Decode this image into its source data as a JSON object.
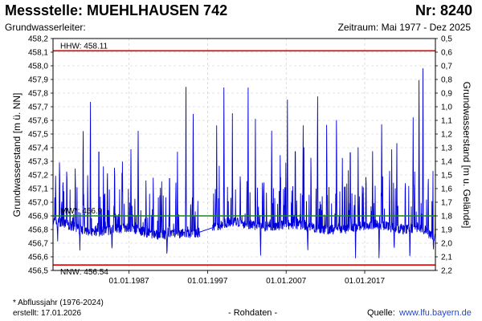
{
  "header": {
    "title": "Messstelle: MUEHLHAUSEN 742",
    "number": "Nr: 8240",
    "aquifer_label": "Grundwasserleiter:",
    "period": "Zeitraum: Mai 1977 - Dez 2025"
  },
  "footer": {
    "footnote": "* Abflussjahr (1976-2024)",
    "created": "erstellt:  17.01.2026",
    "raw_data": "- Rohdaten -",
    "source_label": "Quelle:",
    "source_url": "www.lfu.bayern.de"
  },
  "chart_data": {
    "type": "line",
    "ylabel": "Grundwasserstand [m ü. NN]",
    "y2label": "Grundwasserstand [m u. Gelände]",
    "ylim": [
      456.5,
      458.2
    ],
    "y2lim": [
      2.2,
      0.5
    ],
    "yticks": [
      "458,2",
      "458,1",
      "458,0",
      "457,9",
      "457,8",
      "457,7",
      "457,6",
      "457,5",
      "457,4",
      "457,3",
      "457,2",
      "457,1",
      "457,0",
      "456,9",
      "456,8",
      "456,7",
      "456,6",
      "456,5"
    ],
    "y2ticks": [
      "0,5",
      "0,6",
      "0,7",
      "0,8",
      "0,9",
      "1,0",
      "1,1",
      "1,2",
      "1,3",
      "1,4",
      "1,5",
      "1,6",
      "1,7",
      "1,8",
      "1,9",
      "2,0",
      "2,1",
      "2,2"
    ],
    "xlim": [
      "1977-05-01",
      "2025-12-31"
    ],
    "xticks": [
      {
        "date": "1987-01-01",
        "label": "01.01.1987"
      },
      {
        "date": "1997-01-01",
        "label": "01.01.1997"
      },
      {
        "date": "2007-01-01",
        "label": "01.01.2007"
      },
      {
        "date": "2017-01-01",
        "label": "01.01.2017"
      }
    ],
    "grid": true,
    "reference_lines": [
      {
        "label": "HHW: 458.11",
        "value": 458.11,
        "color": "#e00000"
      },
      {
        "label": "MW*: 456.9",
        "value": 456.9,
        "color": "#1a8a1a"
      },
      {
        "label": "NNW: 456.54",
        "value": 456.54,
        "color": "#e00000"
      }
    ],
    "series": [
      {
        "color": "#0000dd",
        "gap": [
          "1996-01-01",
          "1997-08-01"
        ],
        "baseline": [
          [
            "1977-05-01",
            456.86
          ],
          [
            "1979-01-01",
            456.84
          ],
          [
            "1981-01-01",
            456.8
          ],
          [
            "1983-01-01",
            456.78
          ],
          [
            "1985-01-01",
            456.8
          ],
          [
            "1987-01-01",
            456.82
          ],
          [
            "1989-01-01",
            456.78
          ],
          [
            "1991-01-01",
            456.76
          ],
          [
            "1993-01-01",
            456.77
          ],
          [
            "1995-06-01",
            456.77
          ],
          [
            "1998-01-01",
            456.82
          ],
          [
            "2000-01-01",
            456.86
          ],
          [
            "2002-01-01",
            456.84
          ],
          [
            "2004-01-01",
            456.82
          ],
          [
            "2006-01-01",
            456.83
          ],
          [
            "2008-01-01",
            456.84
          ],
          [
            "2010-01-01",
            456.82
          ],
          [
            "2012-01-01",
            456.8
          ],
          [
            "2014-01-01",
            456.8
          ],
          [
            "2016-01-01",
            456.82
          ],
          [
            "2018-01-01",
            456.84
          ],
          [
            "2020-01-01",
            456.82
          ],
          [
            "2022-01-01",
            456.8
          ],
          [
            "2024-01-01",
            456.82
          ],
          [
            "2025-12-31",
            456.74
          ]
        ],
        "peaks": [
          [
            "1977-09-01",
            457.25
          ],
          [
            "1978-03-01",
            457.4
          ],
          [
            "1979-02-01",
            457.35
          ],
          [
            "1980-03-01",
            457.32
          ],
          [
            "1981-03-01",
            457.7
          ],
          [
            "1982-02-01",
            457.9
          ],
          [
            "1983-03-01",
            457.62
          ],
          [
            "1984-04-01",
            457.35
          ],
          [
            "1985-03-01",
            457.4
          ],
          [
            "1986-03-01",
            457.35
          ],
          [
            "1987-04-01",
            457.45
          ],
          [
            "1988-03-01",
            457.65
          ],
          [
            "1989-03-01",
            457.2
          ],
          [
            "1990-02-01",
            457.25
          ],
          [
            "1991-03-01",
            457.15
          ],
          [
            "1992-03-01",
            457.35
          ],
          [
            "1993-03-01",
            457.4
          ],
          [
            "1994-04-01",
            457.9
          ],
          [
            "1995-03-01",
            457.8
          ],
          [
            "1998-03-01",
            457.6
          ],
          [
            "1999-02-01",
            457.95
          ],
          [
            "2000-03-01",
            457.65
          ],
          [
            "2001-03-01",
            457.3
          ],
          [
            "2002-03-01",
            457.95
          ],
          [
            "2003-02-01",
            457.65
          ],
          [
            "2004-03-01",
            457.2
          ],
          [
            "2005-03-01",
            457.6
          ],
          [
            "2006-04-01",
            457.4
          ],
          [
            "2007-03-01",
            457.75
          ],
          [
            "2008-03-01",
            457.6
          ],
          [
            "2009-03-01",
            457.6
          ],
          [
            "2010-03-01",
            457.45
          ],
          [
            "2011-01-01",
            457.88
          ],
          [
            "2012-03-01",
            457.7
          ],
          [
            "2013-06-01",
            457.8
          ],
          [
            "2014-03-01",
            457.35
          ],
          [
            "2015-03-01",
            457.6
          ],
          [
            "2016-03-01",
            457.4
          ],
          [
            "2017-03-01",
            457.3
          ],
          [
            "2018-01-01",
            457.4
          ],
          [
            "2019-03-01",
            457.7
          ],
          [
            "2020-03-01",
            457.3
          ],
          [
            "2021-02-01",
            457.5
          ],
          [
            "2022-03-01",
            457.25
          ],
          [
            "2023-03-01",
            457.62
          ],
          [
            "2023-12-01",
            457.95
          ],
          [
            "2024-06-01",
            458.11
          ],
          [
            "2025-02-01",
            457.3
          ]
        ],
        "lows": [
          [
            "1977-12-01",
            456.7
          ],
          [
            "1980-10-01",
            456.64
          ],
          [
            "1984-11-01",
            456.62
          ],
          [
            "1991-11-01",
            456.58
          ],
          [
            "2003-10-01",
            456.6
          ],
          [
            "2009-10-01",
            456.62
          ],
          [
            "2015-11-01",
            456.58
          ],
          [
            "2018-11-01",
            456.55
          ],
          [
            "2020-10-01",
            456.62
          ],
          [
            "2022-10-01",
            456.54
          ],
          [
            "2025-10-01",
            456.64
          ]
        ]
      }
    ]
  }
}
